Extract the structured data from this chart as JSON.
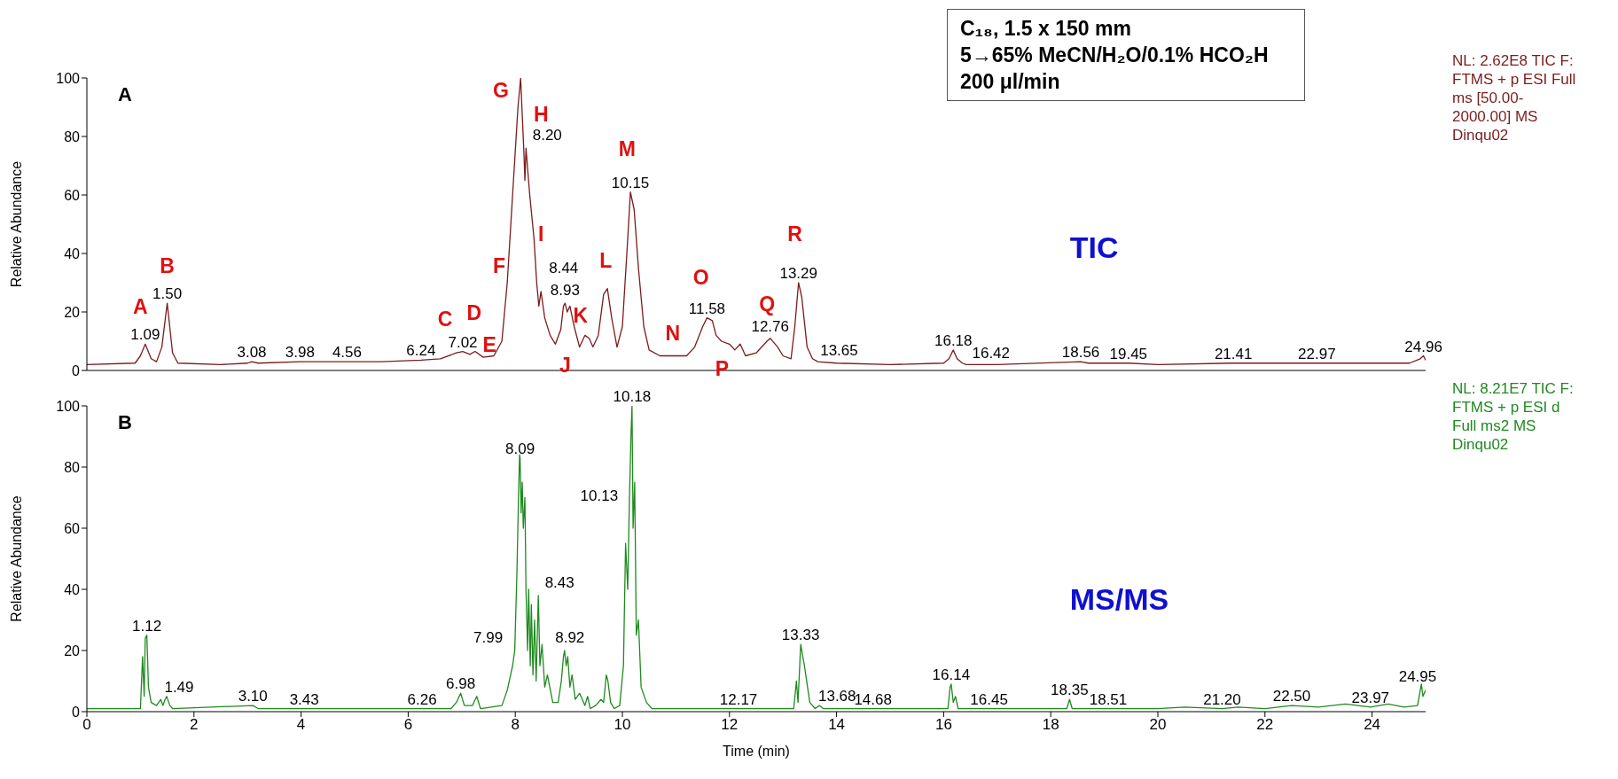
{
  "chart_data": [
    {
      "type": "line",
      "title": "A",
      "ylabel": "Relative Abundance",
      "xlim": [
        0,
        25
      ],
      "xticks": [
        0,
        2,
        4,
        6,
        8,
        10,
        12,
        14,
        16,
        18,
        20,
        22,
        24
      ],
      "ylim": [
        0,
        100
      ],
      "yticks": [
        0,
        20,
        40,
        60,
        80,
        100
      ],
      "tick_labels": "y",
      "grid": false,
      "legend": false,
      "marker": "none",
      "line_style": "solid",
      "series": [
        {
          "color": "#7b1c1c",
          "x": [
            0,
            0.9,
            1.0,
            1.09,
            1.2,
            1.3,
            1.4,
            1.5,
            1.6,
            1.7,
            2.5,
            3.0,
            3.08,
            3.2,
            3.98,
            4.5,
            4.56,
            5.5,
            6.24,
            6.6,
            6.9,
            7.02,
            7.15,
            7.25,
            7.4,
            7.6,
            7.75,
            7.85,
            7.95,
            8.05,
            8.1,
            8.16,
            8.18,
            8.2,
            8.27,
            8.35,
            8.4,
            8.44,
            8.48,
            8.55,
            8.65,
            8.75,
            8.85,
            8.9,
            8.93,
            8.97,
            9.02,
            9.1,
            9.2,
            9.3,
            9.38,
            9.45,
            9.55,
            9.65,
            9.72,
            9.8,
            9.9,
            10.0,
            10.1,
            10.15,
            10.22,
            10.3,
            10.4,
            10.5,
            10.7,
            11.0,
            11.2,
            11.35,
            11.5,
            11.58,
            11.68,
            11.75,
            11.85,
            12.0,
            12.1,
            12.2,
            12.3,
            12.5,
            12.7,
            12.76,
            12.9,
            13.0,
            13.15,
            13.22,
            13.29,
            13.35,
            13.45,
            13.55,
            13.65,
            14,
            15,
            16,
            16.1,
            16.18,
            16.25,
            16.35,
            16.42,
            17,
            18.56,
            18.7,
            19.45,
            20,
            21.41,
            22.97,
            24,
            24.7,
            24.9,
            24.96,
            25
          ],
          "values": [
            2,
            2.5,
            5,
            9,
            4,
            3,
            8,
            23,
            6,
            2.5,
            2,
            2.5,
            3,
            2.5,
            3,
            3,
            3,
            3,
            3.5,
            4,
            6,
            6.5,
            5.5,
            6.5,
            4.5,
            5,
            10,
            30,
            60,
            90,
            100,
            75,
            65,
            76,
            60,
            45,
            30,
            22,
            27,
            18,
            12,
            9,
            14,
            22,
            23,
            20,
            22,
            15,
            8,
            12,
            11,
            8,
            12,
            26,
            28,
            18,
            8,
            15,
            45,
            61,
            55,
            35,
            15,
            7,
            5,
            5,
            5,
            8,
            15,
            18,
            17,
            12,
            10,
            9,
            7,
            9,
            5,
            6,
            10,
            11,
            8,
            5,
            4,
            15,
            30,
            25,
            8,
            4,
            3,
            2.5,
            2,
            2.5,
            4,
            7,
            4,
            2.5,
            2,
            2,
            3,
            2.5,
            2.5,
            2,
            2.5,
            2.5,
            2.5,
            2.5,
            4,
            5,
            3.5
          ]
        }
      ],
      "annotations": [
        "C₁₈, 1.5 x 150 mm",
        "5→65% MeCN/H₂O/0.1% HCO₂H",
        "200 μl/min",
        "TIC",
        "NL: 2.62E8 TIC F: FTMS + p ESI Full ms [50.00- 2000.00]  MS Dinqu02",
        "A",
        "B",
        "C",
        "D",
        "E",
        "F",
        "G",
        "H",
        "I",
        "J",
        "K",
        "L",
        "M",
        "N",
        "O",
        "P",
        "Q",
        "R",
        {
          "text": "1.09",
          "x": 1.09,
          "y": 9
        },
        {
          "text": "1.50",
          "x": 1.5,
          "y": 23
        },
        {
          "text": "3.08",
          "x": 3.08,
          "y": 3
        },
        {
          "text": "3.98",
          "x": 3.98,
          "y": 3
        },
        {
          "text": "4.56",
          "x": 4.56,
          "y": 3
        },
        {
          "text": "6.24",
          "x": 6.24,
          "y": 3.5
        },
        {
          "text": "7.02",
          "x": 7.02,
          "y": 6.5
        },
        {
          "text": "8.20",
          "x": 8.2,
          "y": 76
        },
        {
          "text": "8.44",
          "x": 8.44,
          "y": 22
        },
        {
          "text": "8.93",
          "x": 8.93,
          "y": 23
        },
        {
          "text": "10.15",
          "x": 10.15,
          "y": 61
        },
        {
          "text": "11.58",
          "x": 11.58,
          "y": 18
        },
        {
          "text": "12.76",
          "x": 12.76,
          "y": 11
        },
        {
          "text": "13.29",
          "x": 13.29,
          "y": 30
        },
        {
          "text": "13.65",
          "x": 13.65,
          "y": 3
        },
        {
          "text": "16.18",
          "x": 16.18,
          "y": 7
        },
        {
          "text": "16.42",
          "x": 16.42,
          "y": 2
        },
        {
          "text": "18.56",
          "x": 18.56,
          "y": 3
        },
        {
          "text": "19.45",
          "x": 19.45,
          "y": 2.5
        },
        {
          "text": "21.41",
          "x": 21.41,
          "y": 2.5
        },
        {
          "text": "22.97",
          "x": 22.97,
          "y": 2.5
        },
        {
          "text": "24.96",
          "x": 24.96,
          "y": 5
        }
      ]
    },
    {
      "type": "line",
      "title": "B",
      "xlabel": "Time (min)",
      "ylabel": "Relative Abundance",
      "xlim": [
        0,
        25
      ],
      "xticks": [
        0,
        2,
        4,
        6,
        8,
        10,
        12,
        14,
        16,
        18,
        20,
        22,
        24
      ],
      "ylim": [
        0,
        100
      ],
      "yticks": [
        0,
        20,
        40,
        60,
        80,
        100
      ],
      "grid": false,
      "legend": false,
      "marker": "none",
      "line_style": "solid",
      "series": [
        {
          "color": "#1f8a1f",
          "x": [
            0,
            1.0,
            1.04,
            1.07,
            1.09,
            1.12,
            1.15,
            1.2,
            1.3,
            1.38,
            1.42,
            1.46,
            1.49,
            1.55,
            1.6,
            3.1,
            3.2,
            3.43,
            6.26,
            6.8,
            6.9,
            6.98,
            7.05,
            7.2,
            7.28,
            7.35,
            7.75,
            7.85,
            7.95,
            7.99,
            8.03,
            8.06,
            8.08,
            8.09,
            8.11,
            8.13,
            8.15,
            8.18,
            8.2,
            8.23,
            8.25,
            8.28,
            8.3,
            8.33,
            8.36,
            8.39,
            8.43,
            8.46,
            8.5,
            8.55,
            8.6,
            8.7,
            8.8,
            8.86,
            8.9,
            8.92,
            8.95,
            8.98,
            9.02,
            9.06,
            9.12,
            9.2,
            9.3,
            9.35,
            9.4,
            9.5,
            9.6,
            9.65,
            9.7,
            9.73,
            9.78,
            9.85,
            9.95,
            10.02,
            10.06,
            10.1,
            10.13,
            10.16,
            10.18,
            10.2,
            10.23,
            10.26,
            10.3,
            10.35,
            10.45,
            10.55,
            12.17,
            13.2,
            13.25,
            13.28,
            13.33,
            13.4,
            13.5,
            13.6,
            13.68,
            13.75,
            14.68,
            16.08,
            16.12,
            16.14,
            16.18,
            16.22,
            16.27,
            16.45,
            18.3,
            18.35,
            18.4,
            18.51,
            20,
            20.5,
            21.2,
            21.5,
            22,
            22.5,
            23,
            23.5,
            23.97,
            24.3,
            24.6,
            24.85,
            24.92,
            24.95,
            25
          ],
          "values": [
            1,
            1,
            18,
            5,
            24,
            25,
            8,
            3,
            2,
            4,
            2,
            4,
            5,
            2,
            1,
            2,
            1,
            1,
            1,
            1,
            3,
            6,
            2,
            2,
            5,
            1,
            2,
            7,
            15,
            20,
            45,
            70,
            84,
            83,
            65,
            75,
            60,
            70,
            40,
            20,
            40,
            15,
            35,
            12,
            30,
            10,
            38,
            15,
            22,
            8,
            12,
            3,
            3,
            10,
            18,
            20,
            15,
            18,
            8,
            12,
            4,
            6,
            2,
            5,
            1,
            2,
            4,
            3,
            12,
            10,
            3,
            1,
            2,
            15,
            55,
            40,
            68,
            90,
            100,
            60,
            75,
            25,
            30,
            8,
            3,
            1,
            1,
            1,
            10,
            3,
            22,
            15,
            3,
            1,
            2,
            1,
            1,
            1,
            8,
            9,
            3,
            5,
            1,
            1,
            1,
            4,
            1,
            1,
            1,
            1.5,
            1,
            1.5,
            1,
            2,
            1.5,
            2.5,
            1.5,
            2.5,
            1.5,
            2,
            9,
            5,
            7
          ]
        }
      ],
      "annotations": [
        "MS/MS",
        "NL: 8.21E7 TIC F: FTMS + p ESI d Full ms2  MS Dinqu02",
        {
          "text": "1.12",
          "x": 1.12,
          "y": 25
        },
        {
          "text": "1.49",
          "x": 1.49,
          "y": 5
        },
        {
          "text": "3.10",
          "x": 3.1,
          "y": 2
        },
        {
          "text": "3.43",
          "x": 3.43,
          "y": 1
        },
        {
          "text": "6.26",
          "x": 6.26,
          "y": 1
        },
        {
          "text": "6.98",
          "x": 6.98,
          "y": 6
        },
        {
          "text": "7.99",
          "x": 7.99,
          "y": 20
        },
        {
          "text": "8.09",
          "x": 8.09,
          "y": 83
        },
        {
          "text": "8.43",
          "x": 8.43,
          "y": 38
        },
        {
          "text": "8.92",
          "x": 8.92,
          "y": 20
        },
        {
          "text": "10.13",
          "x": 10.13,
          "y": 68
        },
        {
          "text": "10.18",
          "x": 10.18,
          "y": 100
        },
        {
          "text": "12.17",
          "x": 12.17,
          "y": 1
        },
        {
          "text": "13.33",
          "x": 13.33,
          "y": 22
        },
        {
          "text": "13.68",
          "x": 13.68,
          "y": 2
        },
        {
          "text": "14.68",
          "x": 14.68,
          "y": 1
        },
        {
          "text": "16.14",
          "x": 16.14,
          "y": 9
        },
        {
          "text": "16.45",
          "x": 16.45,
          "y": 1
        },
        {
          "text": "18.35",
          "x": 18.35,
          "y": 4
        },
        {
          "text": "18.51",
          "x": 18.51,
          "y": 1
        },
        {
          "text": "21.20",
          "x": 21.2,
          "y": 1
        },
        {
          "text": "22.50",
          "x": 22.5,
          "y": 2
        },
        {
          "text": "23.97",
          "x": 23.97,
          "y": 1.5
        },
        {
          "text": "24.95",
          "x": 24.95,
          "y": 5
        }
      ]
    }
  ]
}
